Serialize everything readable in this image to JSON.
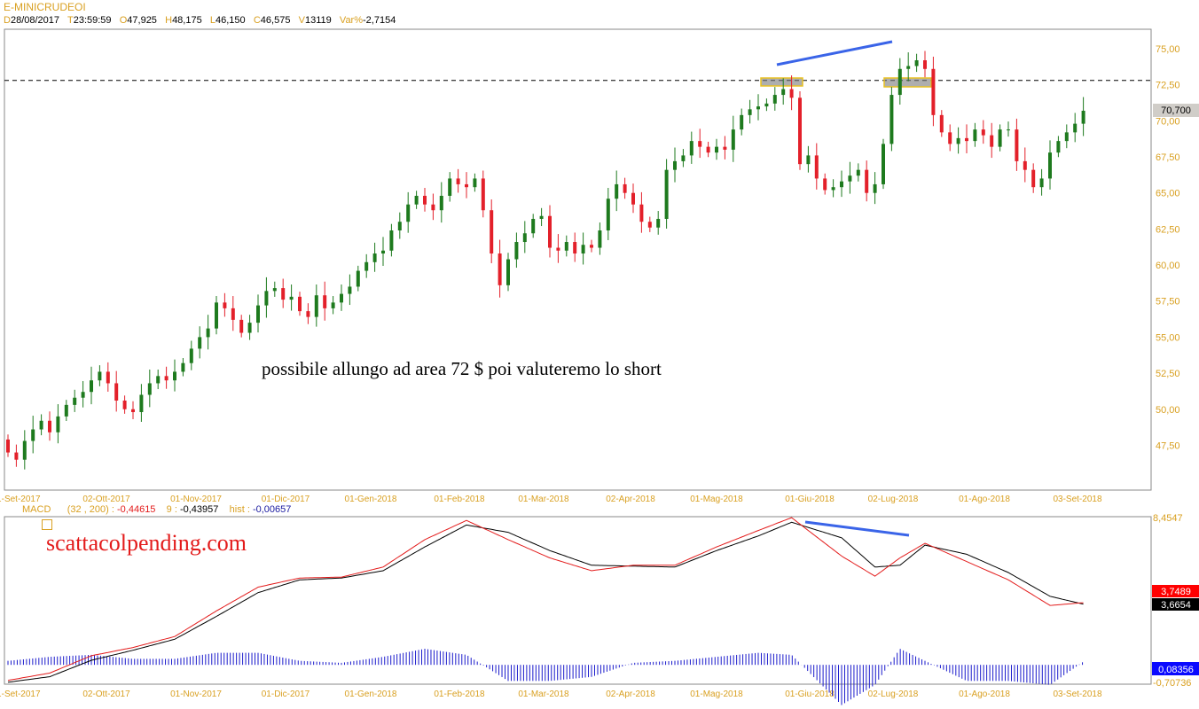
{
  "header": {
    "symbol": "E-MINICRUDEOI",
    "fields": [
      {
        "key": "D",
        "value": "28/08/2017"
      },
      {
        "key": "T",
        "value": "23:59:59"
      },
      {
        "key": "O",
        "value": "47,925"
      },
      {
        "key": "H",
        "value": "48,175"
      },
      {
        "key": "L",
        "value": "46,150"
      },
      {
        "key": "C",
        "value": "46,575"
      },
      {
        "key": "V",
        "value": "13119"
      },
      {
        "key": "Var%",
        "value": "-2,7154"
      }
    ]
  },
  "macd_header": {
    "name": "MACD",
    "params": "(32 , 200) :",
    "macd_value": "-0,44615",
    "signal_label": "9 :",
    "signal_value": "-0,43957",
    "hist_label": "hist :",
    "hist_value": "-0,00657"
  },
  "annotation": "possibile allungo ad area 72 $ poi valuteremo lo short",
  "watermark": "scattacolpending.com",
  "colors": {
    "label": "#d9a021",
    "up": "#1e7a1e",
    "down": "#e3202a",
    "macd": "#e31b1b",
    "signal": "#000000",
    "hist": "#1a1acc",
    "trendline": "#3a64e8"
  },
  "chart_data": [
    {
      "type": "candlestick",
      "title": "E-MINICRUDEOI",
      "y_ticks": [
        "75,00",
        "72,50",
        "70,00",
        "67,50",
        "65,00",
        "62,50",
        "60,00",
        "57,50",
        "55,00",
        "52,50",
        "50,00",
        "47,50"
      ],
      "ylim": [
        44.8,
        76.3
      ],
      "x_ticks": [
        "01-Set-2017",
        "02-Ott-2017",
        "01-Nov-2017",
        "01-Dic-2017",
        "01-Gen-2018",
        "01-Feb-2018",
        "01-Mar-2018",
        "02-Apr-2018",
        "01-Mag-2018",
        "01-Giu-2018",
        "02-Lug-2018",
        "01-Ago-2018",
        "03-Set-2018"
      ],
      "last_price_label": "70,700",
      "resistance_level": 72.8,
      "grid": false,
      "closes": [
        47.0,
        46.5,
        47.8,
        48.6,
        49.2,
        48.4,
        49.5,
        50.3,
        50.8,
        51.2,
        52.0,
        52.6,
        51.8,
        50.6,
        50.0,
        49.8,
        51.0,
        51.8,
        52.3,
        52.0,
        52.6,
        53.2,
        54.2,
        55.0,
        55.6,
        57.4,
        57.0,
        56.2,
        55.3,
        56.0,
        57.2,
        58.2,
        58.4,
        57.6,
        57.8,
        56.8,
        56.4,
        57.9,
        57.0,
        57.4,
        58.0,
        58.5,
        59.6,
        60.2,
        60.8,
        61.0,
        62.4,
        63.0,
        64.2,
        64.8,
        64.2,
        63.8,
        64.8,
        66.0,
        65.6,
        65.4,
        66.0,
        63.8,
        60.8,
        58.6,
        60.4,
        61.6,
        62.2,
        63.2,
        63.4,
        61.2,
        61.0,
        61.6,
        60.8,
        61.4,
        61.2,
        62.4,
        64.6,
        65.6,
        65.0,
        64.2,
        63.0,
        62.6,
        63.2,
        66.6,
        67.2,
        67.6,
        68.6,
        68.2,
        67.8,
        68.2,
        68.0,
        69.4,
        70.4,
        70.8,
        71.0,
        71.2,
        71.8,
        72.2,
        71.6,
        67.0,
        67.6,
        66.0,
        65.2,
        65.4,
        65.8,
        66.2,
        66.6,
        65.0,
        65.6,
        68.4,
        71.8,
        73.6,
        73.8,
        74.2,
        73.6,
        70.4,
        69.2,
        68.4,
        68.8,
        68.6,
        69.4,
        69.0,
        68.2,
        69.4,
        69.4,
        67.2,
        66.6,
        65.4,
        66.0,
        67.8,
        68.6,
        69.2,
        69.8,
        70.7
      ],
      "first_open": 47.9
    },
    {
      "type": "line",
      "title": "MACD",
      "ylim": [
        -0.70736,
        8.4547
      ],
      "axis_labels": [
        "8,4547",
        "-0,70736"
      ],
      "value_tags": {
        "macd": "3,7489",
        "signal": "3,6654",
        "hist": "0,08356"
      },
      "bar_index": [
        0,
        5,
        10,
        15,
        20,
        25,
        30,
        35,
        40,
        45,
        50,
        55,
        60,
        65,
        70,
        75,
        80,
        85,
        90,
        94,
        100,
        104,
        107,
        110,
        115,
        120,
        125,
        129
      ],
      "macd": [
        -0.5,
        -0.1,
        0.85,
        1.3,
        1.9,
        3.3,
        4.6,
        5.1,
        5.15,
        5.7,
        7.2,
        8.25,
        7.2,
        6.2,
        5.5,
        5.8,
        5.8,
        6.8,
        7.7,
        8.4,
        6.3,
        5.2,
        6.2,
        7.0,
        6.0,
        5.0,
        3.6,
        3.75
      ],
      "signal": [
        -0.6,
        -0.3,
        0.6,
        1.15,
        1.75,
        3.0,
        4.3,
        5.0,
        5.1,
        5.5,
        6.8,
        8.0,
        7.6,
        6.6,
        5.8,
        5.75,
        5.7,
        6.6,
        7.4,
        8.15,
        7.3,
        5.7,
        5.8,
        6.9,
        6.4,
        5.4,
        4.1,
        3.67
      ]
    }
  ]
}
